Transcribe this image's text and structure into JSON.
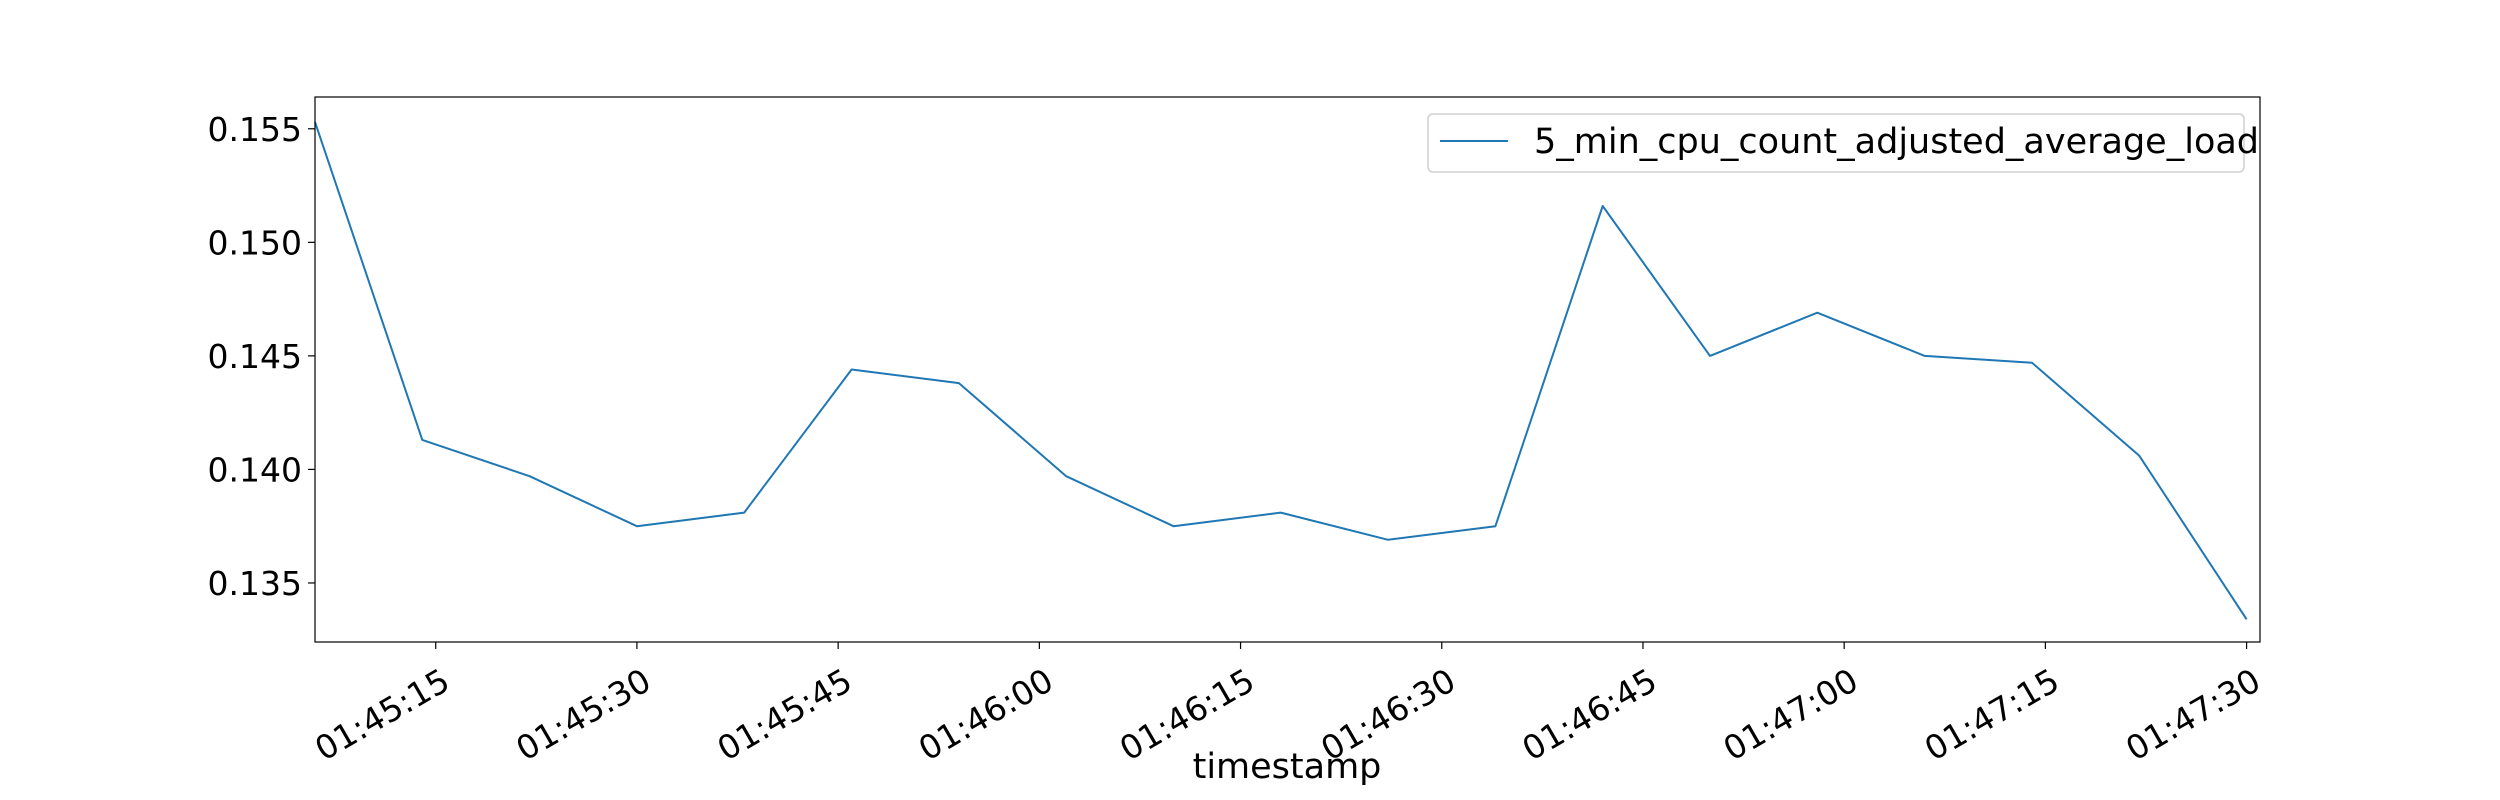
{
  "chart_data": {
    "type": "line",
    "title": "",
    "xlabel": "timestamp",
    "ylabel": "",
    "x_ticks": [
      "01:45:15",
      "01:45:30",
      "01:45:45",
      "01:46:00",
      "01:46:15",
      "01:46:30",
      "01:46:45",
      "01:47:00",
      "01:47:15",
      "01:47:30"
    ],
    "y_ticks": [
      "0.135",
      "0.140",
      "0.145",
      "0.150",
      "0.155"
    ],
    "xlim": [
      "01:45:06",
      "01:47:31"
    ],
    "ylim": [
      0.1324,
      0.1564
    ],
    "grid": false,
    "legend_position": "top-right",
    "series": [
      {
        "name": "5_min_cpu_count_adjusted_average_load",
        "color": "#1f77b4",
        "x": [
          "01:45:06",
          "01:45:14",
          "01:45:22",
          "01:45:30",
          "01:45:38",
          "01:45:46",
          "01:45:54",
          "01:46:02",
          "01:46:10",
          "01:46:18",
          "01:46:26",
          "01:46:34",
          "01:46:42",
          "01:46:50",
          "01:46:58",
          "01:47:06",
          "01:47:14",
          "01:47:22",
          "01:47:30"
        ],
        "values": [
          0.1553,
          0.1413,
          0.1397,
          0.1375,
          0.1381,
          0.1444,
          0.1438,
          0.1397,
          0.1375,
          0.1381,
          0.1369,
          0.1375,
          0.1516,
          0.145,
          0.1469,
          0.145,
          0.1447,
          0.1406,
          0.1334
        ]
      }
    ]
  }
}
